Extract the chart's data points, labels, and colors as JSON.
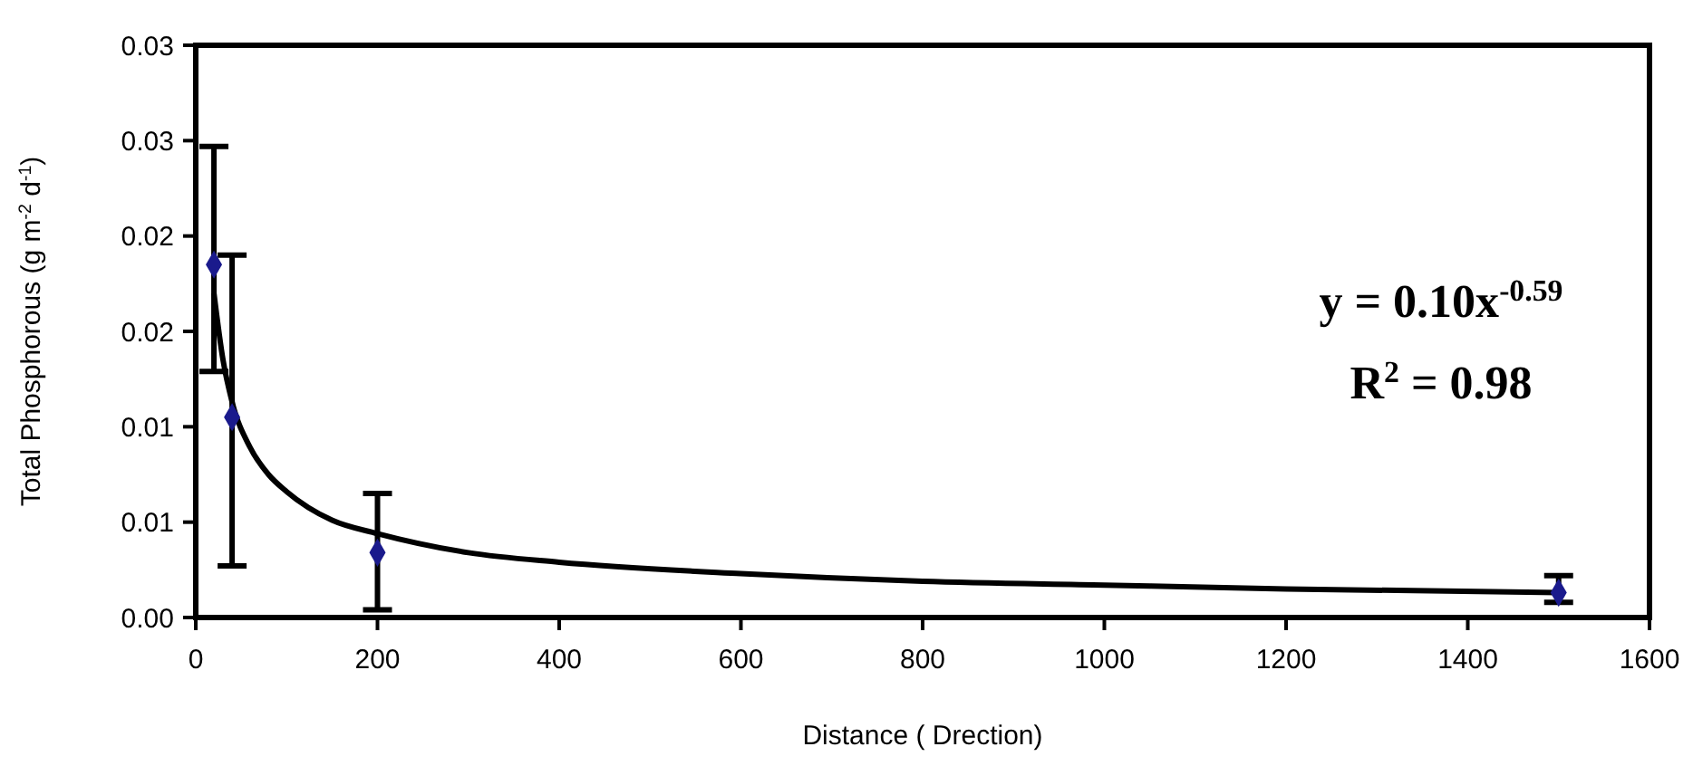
{
  "chart_data": {
    "type": "scatter",
    "xlabel": "Distance ( Drection)",
    "ylabel": "Total Phosphorous (g m$^{-2}$ d$^{-1}$)",
    "xlim": [
      0,
      1600
    ],
    "xticks": [
      0,
      200,
      400,
      600,
      800,
      1000,
      1200,
      1400,
      1600
    ],
    "ylim": [
      0,
      0.03
    ],
    "yticks": [
      {
        "value": 0,
        "label": "0.00"
      },
      {
        "value": 0.005,
        "label": "0.01"
      },
      {
        "value": 0.01,
        "label": "0.01"
      },
      {
        "value": 0.015,
        "label": "0.02"
      },
      {
        "value": 0.02,
        "label": "0.02"
      },
      {
        "value": 0.025,
        "label": "0.03"
      },
      {
        "value": 0.03,
        "label": "0.03"
      }
    ],
    "grid": false,
    "series": [
      {
        "type": "line",
        "color": "#000000",
        "marker": "none",
        "line_style": "solid",
        "x": [
          20,
          30,
          40,
          60,
          80,
          100,
          150,
          200,
          300,
          400,
          600,
          800,
          1000,
          1200,
          1500
        ],
        "values": [
          0.017,
          0.0135,
          0.0113,
          0.0089,
          0.0075,
          0.0066,
          0.0051,
          0.0044,
          0.0034,
          0.0029,
          0.0023,
          0.0019,
          0.0017,
          0.0015,
          0.0013
        ]
      },
      {
        "color": "#1a1a8c",
        "marker": "diamond",
        "x": [
          20,
          40,
          200,
          1500
        ],
        "values": [
          0.0185,
          0.0105,
          0.0034,
          0.0013
        ],
        "errors": [
          [
            0.0129,
            0.0247
          ],
          [
            0.0027,
            0.019
          ],
          [
            0.0004,
            0.0065
          ],
          [
            0.0008,
            0.0022
          ]
        ]
      }
    ],
    "annotations": [
      "y = 0.10x$^{-0.59}$",
      "R$^{2}$ = 0.98"
    ]
  }
}
